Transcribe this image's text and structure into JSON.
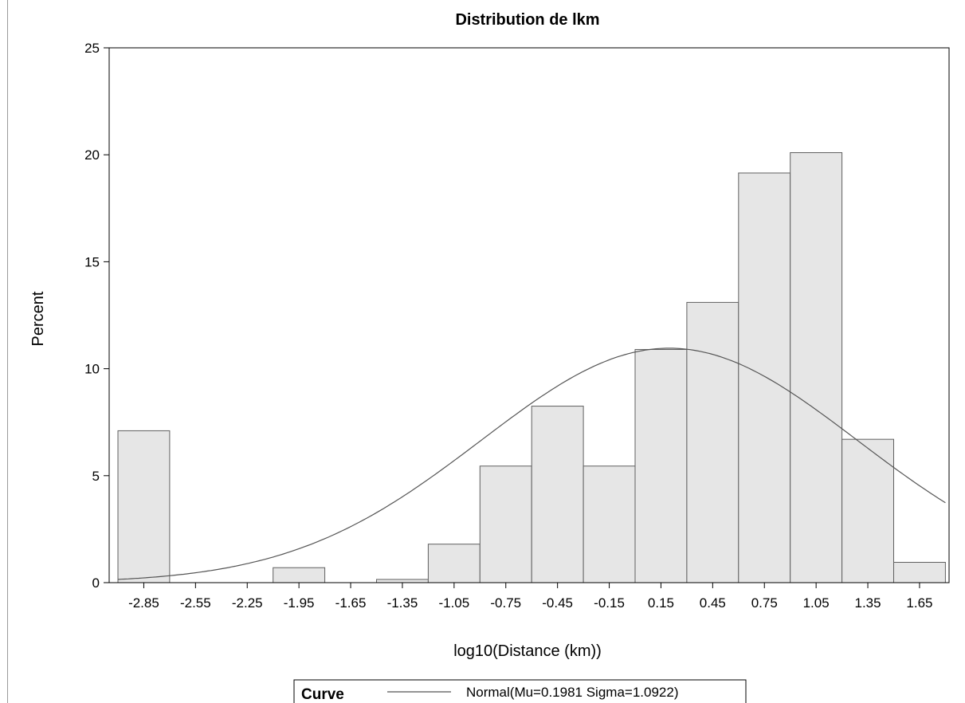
{
  "chart_data": {
    "type": "bar",
    "title": "Distribution de lkm",
    "xlabel": "log10(Distance (km))",
    "ylabel": "Percent",
    "ylim": [
      0,
      25
    ],
    "yticks": [
      "0",
      "5",
      "10",
      "15",
      "20",
      "25"
    ],
    "categories": [
      "-2.85",
      "-2.55",
      "-2.25",
      "-1.95",
      "-1.65",
      "-1.35",
      "-1.05",
      "-0.75",
      "-0.45",
      "-0.15",
      "0.15",
      "0.45",
      "0.75",
      "1.05",
      "1.35",
      "1.65"
    ],
    "values": [
      7.1,
      0,
      0,
      0.7,
      0,
      0.15,
      1.8,
      5.45,
      8.25,
      5.45,
      10.9,
      13.1,
      19.15,
      20.1,
      6.7,
      0.95
    ],
    "bar_fill": "#e6e6e6",
    "bar_stroke": "#606060",
    "curve": {
      "name": "Normal(Mu=0.1981 Sigma=1.0922)",
      "mu": 0.1981,
      "sigma": 1.0922,
      "bin_width": 0.3,
      "color": "#555555"
    },
    "legend": {
      "header": "Curve",
      "label": "Normal(Mu=0.1981 Sigma=1.0922)",
      "position": "bottom-center"
    },
    "grid": false
  }
}
